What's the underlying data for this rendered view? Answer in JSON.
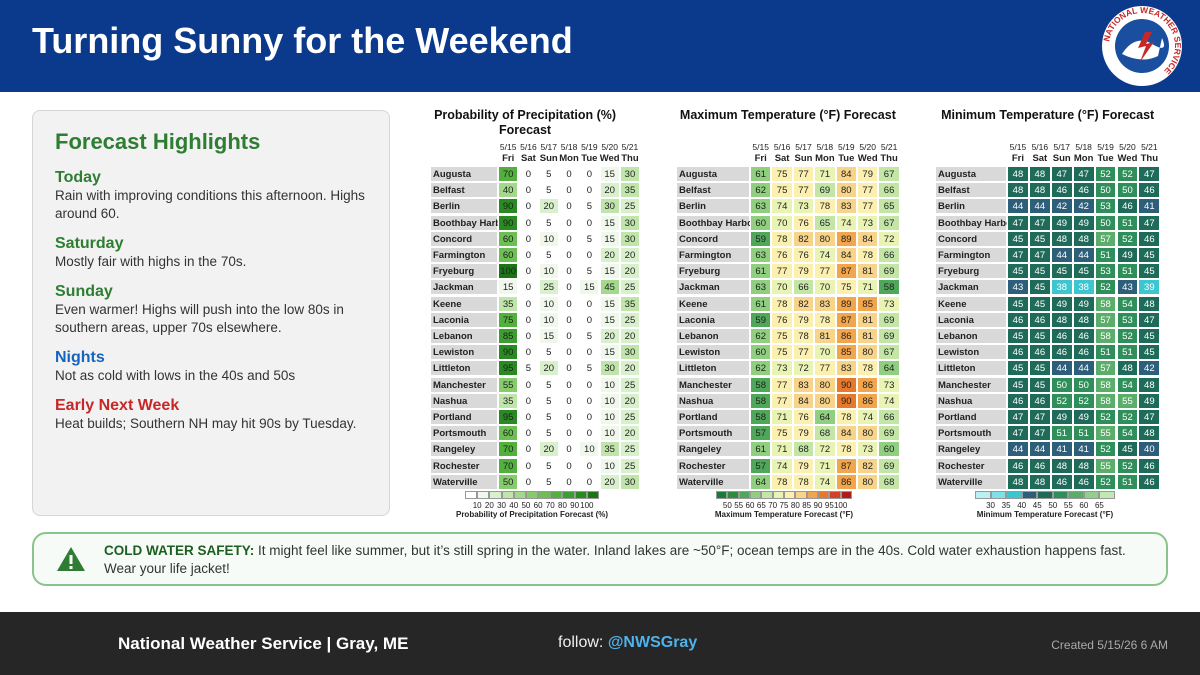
{
  "header": {
    "title": "Turning Sunny for the Weekend"
  },
  "logo": {
    "text": "NATIONAL WEATHER SERVICE"
  },
  "highlights": {
    "title": "Forecast Highlights",
    "items": [
      {
        "heading": "Today",
        "text": "Rain with improving conditions this afternoon. Highs around 60.",
        "color": "#2e7d32"
      },
      {
        "heading": "Saturday",
        "text": "Mostly fair with highs in the 70s.",
        "color": "#2e7d32"
      },
      {
        "heading": "Sunday",
        "text": "Even warmer! Highs will push into the low 80s in southern areas, upper 70s elsewhere.",
        "color": "#2e7d32"
      },
      {
        "heading": "Nights",
        "text": "Not as cold with lows in the 40s and 50s",
        "color": "#1565c0"
      },
      {
        "heading": "Early Next Week",
        "text": "Heat builds; Southern NH may hit 90s by Tuesday.",
        "color": "#c62828"
      }
    ]
  },
  "tables": [
    {
      "title": "Probability of Precipitation (%) Forecast",
      "dates": [
        "5/15",
        "5/16",
        "5/17",
        "5/18",
        "5/19",
        "5/20",
        "5/21"
      ],
      "days": [
        "Fri",
        "Sat",
        "Sun",
        "Mon",
        "Tue",
        "Wed",
        "Thu"
      ],
      "rows": [
        {
          "city": "Augusta",
          "values": [
            70,
            0,
            5,
            0,
            0,
            15,
            30
          ]
        },
        {
          "city": "Belfast",
          "values": [
            40,
            0,
            5,
            0,
            0,
            20,
            35
          ]
        },
        {
          "city": "Berlin",
          "values": [
            90,
            0,
            20,
            0,
            5,
            30,
            25
          ]
        },
        {
          "city": "Boothbay Harbor",
          "values": [
            90,
            0,
            5,
            0,
            0,
            15,
            30
          ]
        },
        {
          "city": "Concord",
          "values": [
            60,
            0,
            10,
            0,
            5,
            15,
            30
          ]
        },
        {
          "city": "Farmington",
          "values": [
            60,
            0,
            5,
            0,
            0,
            20,
            20
          ]
        },
        {
          "city": "Fryeburg",
          "values": [
            100,
            0,
            10,
            0,
            5,
            15,
            20
          ]
        },
        {
          "city": "Jackman",
          "values": [
            15,
            0,
            25,
            0,
            15,
            45,
            25
          ]
        },
        {
          "city": "Keene",
          "values": [
            35,
            0,
            10,
            0,
            0,
            15,
            35
          ]
        },
        {
          "city": "Laconia",
          "values": [
            75,
            0,
            10,
            0,
            0,
            15,
            25
          ]
        },
        {
          "city": "Lebanon",
          "values": [
            85,
            0,
            15,
            0,
            5,
            20,
            20
          ]
        },
        {
          "city": "Lewiston",
          "values": [
            90,
            0,
            5,
            0,
            0,
            15,
            30
          ]
        },
        {
          "city": "Littleton",
          "values": [
            95,
            5,
            20,
            0,
            5,
            30,
            20
          ]
        },
        {
          "city": "Manchester",
          "values": [
            55,
            0,
            5,
            0,
            0,
            10,
            25
          ]
        },
        {
          "city": "Nashua",
          "values": [
            35,
            0,
            5,
            0,
            0,
            10,
            20
          ]
        },
        {
          "city": "Portland",
          "values": [
            95,
            0,
            5,
            0,
            0,
            10,
            25
          ]
        },
        {
          "city": "Portsmouth",
          "values": [
            60,
            0,
            5,
            0,
            0,
            10,
            20
          ]
        },
        {
          "city": "Rangeley",
          "values": [
            70,
            0,
            20,
            0,
            10,
            35,
            25
          ]
        },
        {
          "city": "Rochester",
          "values": [
            70,
            0,
            5,
            0,
            0,
            10,
            25
          ]
        },
        {
          "city": "Waterville",
          "values": [
            50,
            0,
            5,
            0,
            0,
            20,
            30
          ]
        }
      ],
      "legend": {
        "label": "Probability of Precipitation Forecast (%)",
        "ticks": [
          10,
          20,
          30,
          40,
          50,
          60,
          70,
          80,
          90,
          100
        ],
        "colors": [
          "#ffffff",
          "#f0f8ec",
          "#d9f0cc",
          "#bfe5aa",
          "#a3d98a",
          "#87cc6c",
          "#6cbf52",
          "#52b03c",
          "#3c9e2e",
          "#2a8a22",
          "#1b7518"
        ]
      }
    },
    {
      "title": "Maximum Temperature (°F) Forecast",
      "dates": [
        "5/15",
        "5/16",
        "5/17",
        "5/18",
        "5/19",
        "5/20",
        "5/21"
      ],
      "days": [
        "Fri",
        "Sat",
        "Sun",
        "Mon",
        "Tue",
        "Wed",
        "Thu"
      ],
      "rows": [
        {
          "city": "Augusta",
          "values": [
            61,
            75,
            77,
            71,
            84,
            79,
            67
          ]
        },
        {
          "city": "Belfast",
          "values": [
            62,
            75,
            77,
            69,
            80,
            77,
            66
          ]
        },
        {
          "city": "Berlin",
          "values": [
            63,
            74,
            73,
            78,
            83,
            77,
            65
          ]
        },
        {
          "city": "Boothbay Harbor",
          "values": [
            60,
            70,
            76,
            65,
            74,
            73,
            67
          ]
        },
        {
          "city": "Concord",
          "values": [
            59,
            78,
            82,
            80,
            89,
            84,
            72
          ]
        },
        {
          "city": "Farmington",
          "values": [
            63,
            76,
            76,
            74,
            84,
            78,
            66
          ]
        },
        {
          "city": "Fryeburg",
          "values": [
            61,
            77,
            79,
            77,
            87,
            81,
            69
          ]
        },
        {
          "city": "Jackman",
          "values": [
            63,
            70,
            66,
            70,
            75,
            71,
            58
          ]
        },
        {
          "city": "Keene",
          "values": [
            61,
            78,
            82,
            83,
            89,
            85,
            73
          ]
        },
        {
          "city": "Laconia",
          "values": [
            59,
            76,
            79,
            78,
            87,
            81,
            69
          ]
        },
        {
          "city": "Lebanon",
          "values": [
            62,
            75,
            78,
            81,
            86,
            81,
            69
          ]
        },
        {
          "city": "Lewiston",
          "values": [
            60,
            75,
            77,
            70,
            85,
            80,
            67
          ]
        },
        {
          "city": "Littleton",
          "values": [
            62,
            73,
            72,
            77,
            83,
            78,
            64
          ]
        },
        {
          "city": "Manchester",
          "values": [
            58,
            77,
            83,
            80,
            90,
            86,
            73
          ]
        },
        {
          "city": "Nashua",
          "values": [
            58,
            77,
            84,
            80,
            90,
            86,
            74
          ]
        },
        {
          "city": "Portland",
          "values": [
            58,
            71,
            76,
            64,
            78,
            74,
            66
          ]
        },
        {
          "city": "Portsmouth",
          "values": [
            57,
            75,
            79,
            68,
            84,
            80,
            69
          ]
        },
        {
          "city": "Rangeley",
          "values": [
            61,
            71,
            68,
            72,
            78,
            73,
            60
          ]
        },
        {
          "city": "Rochester",
          "values": [
            57,
            74,
            79,
            71,
            87,
            82,
            69
          ]
        },
        {
          "city": "Waterville",
          "values": [
            64,
            78,
            78,
            74,
            86,
            80,
            68
          ]
        }
      ],
      "legend": {
        "label": "Maximum Temperature Forecast (°F)",
        "ticks": [
          50,
          55,
          60,
          65,
          70,
          75,
          80,
          85,
          90,
          95,
          100
        ],
        "colors": [
          "#1a7a3a",
          "#2e8b3e",
          "#4fa85a",
          "#8fcf7f",
          "#c3e6a6",
          "#e9f3b4",
          "#fbf0b0",
          "#f7d48a",
          "#f2a54a",
          "#e8792a",
          "#d6402a",
          "#b01a1a"
        ]
      }
    },
    {
      "title": "Minimum Temperature (°F) Forecast",
      "dates": [
        "5/15",
        "5/16",
        "5/17",
        "5/18",
        "5/19",
        "5/20",
        "5/21"
      ],
      "days": [
        "Fri",
        "Sat",
        "Sun",
        "Mon",
        "Tue",
        "Wed",
        "Thu"
      ],
      "rows": [
        {
          "city": "Augusta",
          "values": [
            48,
            48,
            47,
            47,
            52,
            52,
            47
          ]
        },
        {
          "city": "Belfast",
          "values": [
            48,
            48,
            46,
            46,
            50,
            50,
            46
          ]
        },
        {
          "city": "Berlin",
          "values": [
            44,
            44,
            42,
            42,
            53,
            46,
            41
          ]
        },
        {
          "city": "Boothbay Harbor",
          "values": [
            47,
            47,
            49,
            49,
            50,
            51,
            47
          ]
        },
        {
          "city": "Concord",
          "values": [
            45,
            45,
            48,
            48,
            57,
            52,
            46
          ]
        },
        {
          "city": "Farmington",
          "values": [
            47,
            47,
            44,
            44,
            51,
            49,
            45
          ]
        },
        {
          "city": "Fryeburg",
          "values": [
            45,
            45,
            45,
            45,
            53,
            51,
            45
          ]
        },
        {
          "city": "Jackman",
          "values": [
            43,
            45,
            38,
            38,
            52,
            43,
            39
          ]
        },
        {
          "city": "Keene",
          "values": [
            45,
            45,
            49,
            49,
            58,
            54,
            48
          ]
        },
        {
          "city": "Laconia",
          "values": [
            46,
            46,
            48,
            48,
            57,
            53,
            47
          ]
        },
        {
          "city": "Lebanon",
          "values": [
            45,
            45,
            46,
            46,
            58,
            52,
            45
          ]
        },
        {
          "city": "Lewiston",
          "values": [
            46,
            46,
            46,
            46,
            51,
            51,
            45
          ]
        },
        {
          "city": "Littleton",
          "values": [
            45,
            45,
            44,
            44,
            57,
            48,
            42
          ]
        },
        {
          "city": "Manchester",
          "values": [
            45,
            45,
            50,
            50,
            58,
            54,
            48
          ]
        },
        {
          "city": "Nashua",
          "values": [
            46,
            46,
            52,
            52,
            58,
            55,
            49
          ]
        },
        {
          "city": "Portland",
          "values": [
            47,
            47,
            49,
            49,
            52,
            52,
            47
          ]
        },
        {
          "city": "Portsmouth",
          "values": [
            47,
            47,
            51,
            51,
            55,
            54,
            48
          ]
        },
        {
          "city": "Rangeley",
          "values": [
            44,
            44,
            41,
            41,
            52,
            45,
            40
          ]
        },
        {
          "city": "Rochester",
          "values": [
            46,
            46,
            48,
            48,
            55,
            52,
            46
          ]
        },
        {
          "city": "Waterville",
          "values": [
            48,
            48,
            46,
            46,
            52,
            51,
            46
          ]
        }
      ],
      "legend": {
        "label": "Minimum Temperature Forecast (°F)",
        "ticks": [
          30,
          35,
          40,
          45,
          50,
          55,
          60,
          65
        ],
        "colors": [
          "#b8f0f5",
          "#7fe0ea",
          "#3ec6d0",
          "#2d5f7a",
          "#1f6b5a",
          "#2f8f5a",
          "#5aae6a",
          "#8fd08a",
          "#c0e8b0"
        ]
      }
    }
  ],
  "alert": {
    "label": "COLD WATER SAFETY:",
    "text": "It might feel like summer, but it’s still spring in the water. Inland lakes are ~50°F; ocean temps are in the 40s. Cold water exhaustion happens fast. Wear your life jacket!"
  },
  "footer": {
    "org": "National Weather Service | Gray, ME",
    "follow_label": "follow:",
    "handle": "@NWSGray",
    "created": "Created 5/15/26 6 AM"
  }
}
